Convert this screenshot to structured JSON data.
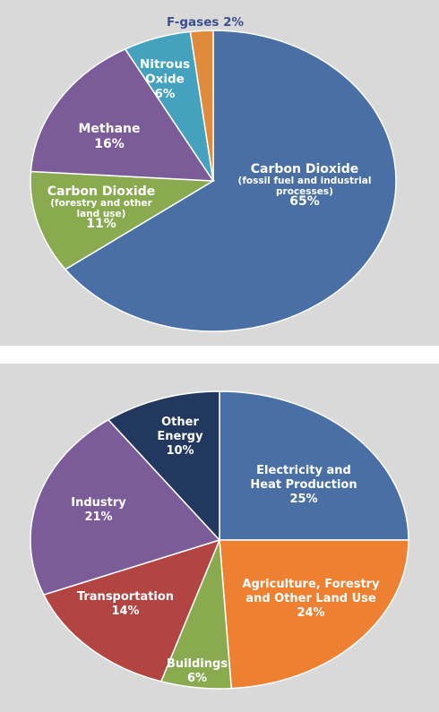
{
  "chart_data": [
    {
      "type": "pie",
      "slices": [
        {
          "label_lines": [
            "Carbon Dioxide"
          ],
          "sub_lines": [
            "(fossil fuel and industrial",
            "processes)"
          ],
          "percent_text": "65%",
          "value": 65,
          "color": "#4a6fa5",
          "text_color": "#ffffff"
        },
        {
          "label_lines": [
            "Carbon Dioxide"
          ],
          "sub_lines": [
            "(forestry and other",
            "land use)"
          ],
          "percent_text": "11%",
          "value": 11,
          "color": "#8aaa4f",
          "text_color": "#ffffff"
        },
        {
          "label_lines": [
            "Methane"
          ],
          "sub_lines": [],
          "percent_text": "16%",
          "value": 16,
          "color": "#7b5c98",
          "text_color": "#ffffff"
        },
        {
          "label_lines": [
            "Nitrous",
            "Oxide"
          ],
          "sub_lines": [],
          "percent_text": "6%",
          "value": 6,
          "color": "#44a2bf",
          "text_color": "#ffffff"
        },
        {
          "label_lines": [
            "F-gases 2%"
          ],
          "sub_lines": [],
          "percent_text": "",
          "value": 2,
          "color": "#e08a3c",
          "text_color": "#3b4f8f"
        }
      ]
    },
    {
      "type": "pie",
      "slices": [
        {
          "label_lines": [
            "Electricity and",
            "Heat Production"
          ],
          "sub_lines": [],
          "percent_text": "25%",
          "value": 25,
          "color": "#4a6fa5",
          "text_color": "#ffffff"
        },
        {
          "label_lines": [
            "Agriculture, Forestry",
            "and Other Land Use"
          ],
          "sub_lines": [],
          "percent_text": "24%",
          "value": 24,
          "color": "#ee8032",
          "text_color": "#ffffff"
        },
        {
          "label_lines": [
            "Buildings"
          ],
          "sub_lines": [],
          "percent_text": "6%",
          "value": 6,
          "color": "#8aaa4f",
          "text_color": "#ffffff"
        },
        {
          "label_lines": [
            "Transportation"
          ],
          "sub_lines": [],
          "percent_text": "14%",
          "value": 14,
          "color": "#b24442",
          "text_color": "#ffffff"
        },
        {
          "label_lines": [
            "Industry"
          ],
          "sub_lines": [],
          "percent_text": "21%",
          "value": 21,
          "color": "#7b5c98",
          "text_color": "#ffffff"
        },
        {
          "label_lines": [
            "Other",
            "Energy"
          ],
          "sub_lines": [],
          "percent_text": "10%",
          "value": 10,
          "color": "#23385e",
          "text_color": "#ffffff"
        }
      ]
    }
  ]
}
